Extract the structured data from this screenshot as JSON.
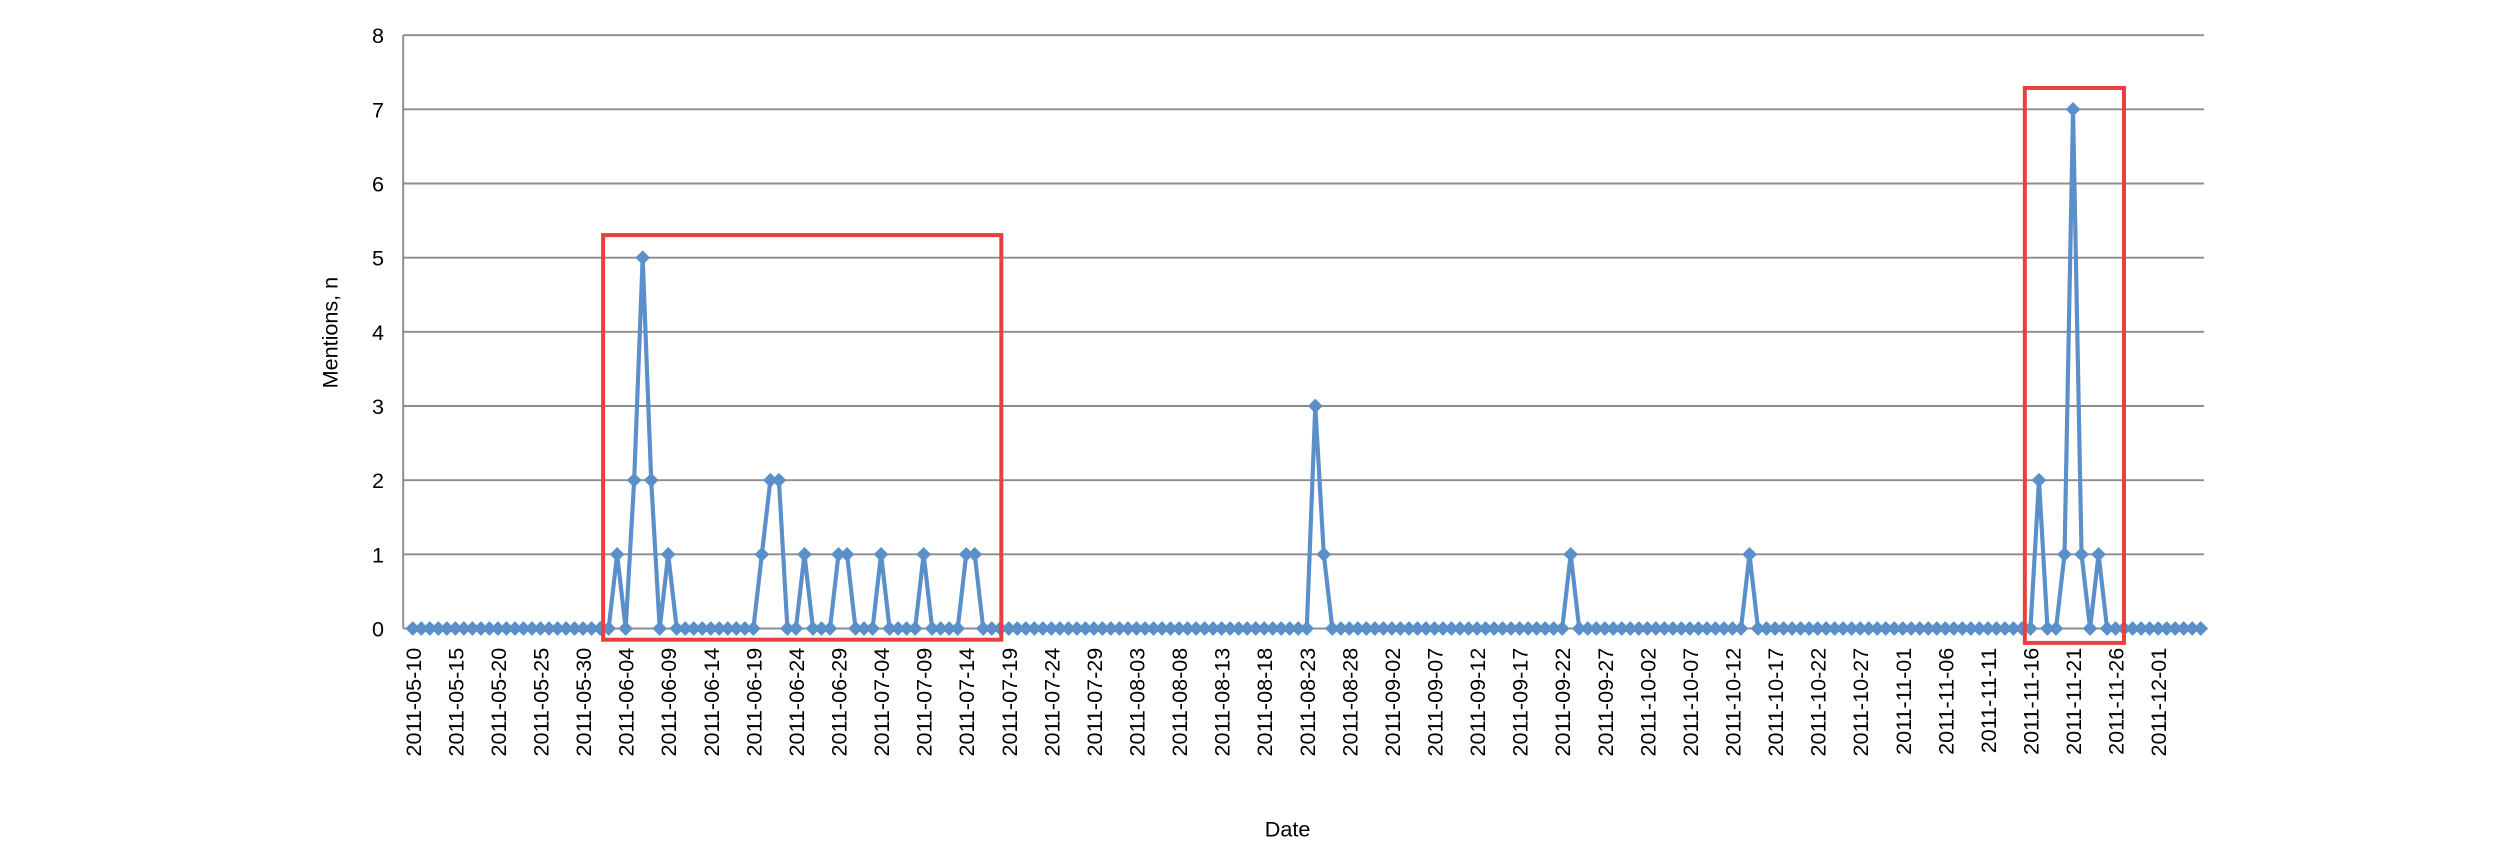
{
  "chart_data": {
    "type": "line",
    "xlabel": "Date",
    "ylabel": "Mentions, n",
    "x": [
      "2011-05-10",
      "2011-05-11",
      "2011-05-12",
      "2011-05-13",
      "2011-05-14",
      "2011-05-15",
      "2011-05-16",
      "2011-05-17",
      "2011-05-18",
      "2011-05-19",
      "2011-05-20",
      "2011-05-21",
      "2011-05-22",
      "2011-05-23",
      "2011-05-24",
      "2011-05-25",
      "2011-05-26",
      "2011-05-27",
      "2011-05-28",
      "2011-05-29",
      "2011-05-30",
      "2011-05-31",
      "2011-06-01",
      "2011-06-02",
      "2011-06-03",
      "2011-06-04",
      "2011-06-05",
      "2011-06-06",
      "2011-06-07",
      "2011-06-08",
      "2011-06-09",
      "2011-06-10",
      "2011-06-11",
      "2011-06-12",
      "2011-06-13",
      "2011-06-14",
      "2011-06-15",
      "2011-06-16",
      "2011-06-17",
      "2011-06-18",
      "2011-06-19",
      "2011-06-20",
      "2011-06-21",
      "2011-06-22",
      "2011-06-23",
      "2011-06-24",
      "2011-06-25",
      "2011-06-26",
      "2011-06-27",
      "2011-06-28",
      "2011-06-29",
      "2011-06-30",
      "2011-07-01",
      "2011-07-02",
      "2011-07-03",
      "2011-07-04",
      "2011-07-05",
      "2011-07-06",
      "2011-07-07",
      "2011-07-08",
      "2011-07-09",
      "2011-07-10",
      "2011-07-11",
      "2011-07-12",
      "2011-07-13",
      "2011-07-14",
      "2011-07-15",
      "2011-07-16",
      "2011-07-17",
      "2011-07-18",
      "2011-07-19",
      "2011-07-20",
      "2011-07-21",
      "2011-07-22",
      "2011-07-23",
      "2011-07-24",
      "2011-07-25",
      "2011-07-26",
      "2011-07-27",
      "2011-07-28",
      "2011-07-29",
      "2011-07-30",
      "2011-07-31",
      "2011-08-01",
      "2011-08-02",
      "2011-08-03",
      "2011-08-04",
      "2011-08-05",
      "2011-08-06",
      "2011-08-07",
      "2011-08-08",
      "2011-08-09",
      "2011-08-10",
      "2011-08-11",
      "2011-08-12",
      "2011-08-13",
      "2011-08-14",
      "2011-08-15",
      "2011-08-16",
      "2011-08-17",
      "2011-08-18",
      "2011-08-19",
      "2011-08-20",
      "2011-08-21",
      "2011-08-22",
      "2011-08-23",
      "2011-08-24",
      "2011-08-25",
      "2011-08-26",
      "2011-08-27",
      "2011-08-28",
      "2011-08-29",
      "2011-08-30",
      "2011-08-31",
      "2011-09-01",
      "2011-09-02",
      "2011-09-03",
      "2011-09-04",
      "2011-09-05",
      "2011-09-06",
      "2011-09-07",
      "2011-09-08",
      "2011-09-09",
      "2011-09-10",
      "2011-09-11",
      "2011-09-12",
      "2011-09-13",
      "2011-09-14",
      "2011-09-15",
      "2011-09-16",
      "2011-09-17",
      "2011-09-18",
      "2011-09-19",
      "2011-09-20",
      "2011-09-21",
      "2011-09-22",
      "2011-09-23",
      "2011-09-24",
      "2011-09-25",
      "2011-09-26",
      "2011-09-27",
      "2011-09-28",
      "2011-09-29",
      "2011-09-30",
      "2011-10-01",
      "2011-10-02",
      "2011-10-03",
      "2011-10-04",
      "2011-10-05",
      "2011-10-06",
      "2011-10-07",
      "2011-10-08",
      "2011-10-09",
      "2011-10-10",
      "2011-10-11",
      "2011-10-12",
      "2011-10-13",
      "2011-10-14",
      "2011-10-15",
      "2011-10-16",
      "2011-10-17",
      "2011-10-18",
      "2011-10-19",
      "2011-10-20",
      "2011-10-21",
      "2011-10-22",
      "2011-10-23",
      "2011-10-24",
      "2011-10-25",
      "2011-10-26",
      "2011-10-27",
      "2011-10-28",
      "2011-10-29",
      "2011-10-30",
      "2011-10-31",
      "2011-11-01",
      "2011-11-02",
      "2011-11-03",
      "2011-11-04",
      "2011-11-05",
      "2011-11-06",
      "2011-11-07",
      "2011-11-08",
      "2011-11-09",
      "2011-11-10",
      "2011-11-11",
      "2011-11-12",
      "2011-11-13",
      "2011-11-14",
      "2011-11-15",
      "2011-11-16",
      "2011-11-17",
      "2011-11-18",
      "2011-11-19",
      "2011-11-20",
      "2011-11-21",
      "2011-11-22",
      "2011-11-23",
      "2011-11-24",
      "2011-11-25",
      "2011-11-26",
      "2011-11-27",
      "2011-11-28",
      "2011-11-29",
      "2011-11-30",
      "2011-12-01",
      "2011-12-02",
      "2011-12-03",
      "2011-12-04",
      "2011-12-05",
      "2011-12-06"
    ],
    "series": [
      {
        "color": "#5b8fc9",
        "values": [
          0,
          0,
          0,
          0,
          0,
          0,
          0,
          0,
          0,
          0,
          0,
          0,
          0,
          0,
          0,
          0,
          0,
          0,
          0,
          0,
          0,
          0,
          0,
          0,
          1,
          0,
          2,
          5,
          2,
          0,
          1,
          0,
          0,
          0,
          0,
          0,
          0,
          0,
          0,
          0,
          0,
          1,
          2,
          2,
          0,
          0,
          1,
          0,
          0,
          0,
          1,
          1,
          0,
          0,
          0,
          1,
          0,
          0,
          0,
          0,
          1,
          0,
          0,
          0,
          0,
          1,
          1,
          0,
          0,
          0,
          0,
          0,
          0,
          0,
          0,
          0,
          0,
          0,
          0,
          0,
          0,
          0,
          0,
          0,
          0,
          0,
          0,
          0,
          0,
          0,
          0,
          0,
          0,
          0,
          0,
          0,
          0,
          0,
          0,
          0,
          0,
          0,
          0,
          0,
          0,
          0,
          3,
          1,
          0,
          0,
          0,
          0,
          0,
          0,
          0,
          0,
          0,
          0,
          0,
          0,
          0,
          0,
          0,
          0,
          0,
          0,
          0,
          0,
          0,
          0,
          0,
          0,
          0,
          0,
          0,
          0,
          1,
          0,
          0,
          0,
          0,
          0,
          0,
          0,
          0,
          0,
          0,
          0,
          0,
          0,
          0,
          0,
          0,
          0,
          0,
          0,
          0,
          1,
          0,
          0,
          0,
          0,
          0,
          0,
          0,
          0,
          0,
          0,
          0,
          0,
          0,
          0,
          0,
          0,
          0,
          0,
          0,
          0,
          0,
          0,
          0,
          0,
          0,
          0,
          0,
          0,
          0,
          0,
          0,
          0,
          0,
          2,
          0,
          0,
          1,
          7,
          1,
          0,
          1,
          0,
          0,
          0,
          0,
          0,
          0,
          0,
          0,
          0,
          0,
          0,
          0
        ]
      }
    ],
    "xlim": [
      "2011-05-10",
      "2011-12-06"
    ],
    "xticks": [
      "2011-05-10",
      "2011-05-15",
      "2011-05-20",
      "2011-05-25",
      "2011-05-30",
      "2011-06-04",
      "2011-06-09",
      "2011-06-14",
      "2011-06-19",
      "2011-06-24",
      "2011-06-29",
      "2011-07-04",
      "2011-07-09",
      "2011-07-14",
      "2011-07-19",
      "2011-07-24",
      "2011-07-29",
      "2011-08-03",
      "2011-08-08",
      "2011-08-13",
      "2011-08-18",
      "2011-08-23",
      "2011-08-28",
      "2011-09-02",
      "2011-09-07",
      "2011-09-12",
      "2011-09-17",
      "2011-09-22",
      "2011-09-27",
      "2011-10-02",
      "2011-10-07",
      "2011-10-12",
      "2011-10-17",
      "2011-10-22",
      "2011-10-27",
      "2011-11-01",
      "2011-11-06",
      "2011-11-11",
      "2011-11-16",
      "2011-11-21",
      "2011-11-26",
      "2011-12-01"
    ],
    "ylim": [
      0,
      8
    ],
    "yticks": [
      0,
      1,
      2,
      3,
      4,
      5,
      6,
      7,
      8
    ],
    "grid": true
  }
}
